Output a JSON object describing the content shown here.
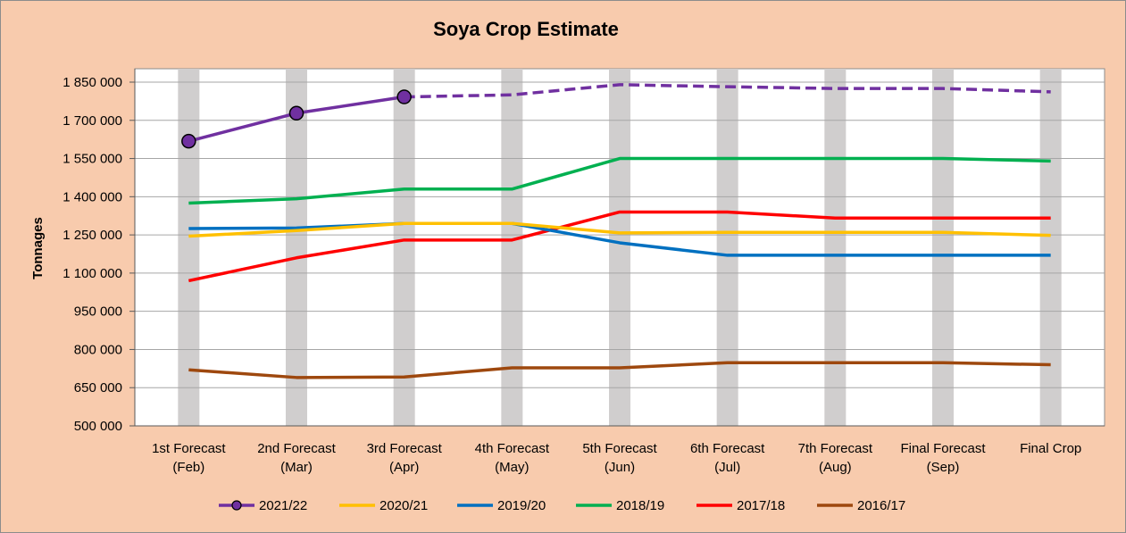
{
  "chart_data": {
    "type": "line",
    "title": "Soya Crop Estimate",
    "xlabel": "",
    "ylabel": "Tonnages",
    "ylim": [
      500000,
      1850000
    ],
    "yticks": [
      500000,
      650000,
      800000,
      950000,
      1100000,
      1250000,
      1400000,
      1550000,
      1700000,
      1850000
    ],
    "ytick_labels": [
      "500 000",
      "650 000",
      "800 000",
      "950 000",
      "1 100 000",
      "1 250 000",
      "1 400 000",
      "1 550 000",
      "1 700 000",
      "1 850 000"
    ],
    "categories": [
      [
        "1st Forecast",
        "(Feb)"
      ],
      [
        "2nd Forecast",
        "(Mar)"
      ],
      [
        "3rd Forecast",
        "(Apr)"
      ],
      [
        "4th Forecast",
        "(May)"
      ],
      [
        "5th Forecast",
        "(Jun)"
      ],
      [
        "6th Forecast",
        "(Jul)"
      ],
      [
        "7th Forecast",
        "(Aug)"
      ],
      [
        "Final Forecast",
        "(Sep)"
      ],
      [
        "Final Crop"
      ]
    ],
    "grid": true,
    "legend_position": "bottom",
    "colors": {
      "plot_background": "#FFFFFF",
      "chart_background": "#F8CBAD",
      "column_bands": "#D0CECE",
      "gridlines": "#A6A6A6"
    },
    "series": [
      {
        "name": "2021/22",
        "color": "#7030A0",
        "marker": "circle",
        "marker_fill": "#7030A0",
        "values": [
          1618000,
          1728000,
          1792000,
          1800000,
          1840000,
          1832000,
          1825000,
          1825000,
          1812000
        ],
        "solid_until_index": 2,
        "dashed_after": true
      },
      {
        "name": "2020/21",
        "color": "#FFC000",
        "values": [
          1245000,
          1267000,
          1295000,
          1295000,
          1258000,
          1260000,
          1260000,
          1260000,
          1248000
        ]
      },
      {
        "name": "2019/20",
        "color": "#0070C0",
        "values": [
          1275000,
          1277000,
          1295000,
          1295000,
          1219000,
          1170000,
          1170000,
          1170000,
          1170000
        ]
      },
      {
        "name": "2018/19",
        "color": "#00B050",
        "values": [
          1375000,
          1392000,
          1430000,
          1430000,
          1550000,
          1550000,
          1550000,
          1550000,
          1540000
        ]
      },
      {
        "name": "2017/18",
        "color": "#FF0000",
        "values": [
          1070000,
          1160000,
          1230000,
          1230000,
          1340000,
          1340000,
          1316000,
          1316000,
          1316000
        ]
      },
      {
        "name": "2016/17",
        "color": "#9E480E",
        "values": [
          720000,
          690000,
          692000,
          728000,
          728000,
          748000,
          748000,
          748000,
          740000
        ]
      }
    ]
  }
}
